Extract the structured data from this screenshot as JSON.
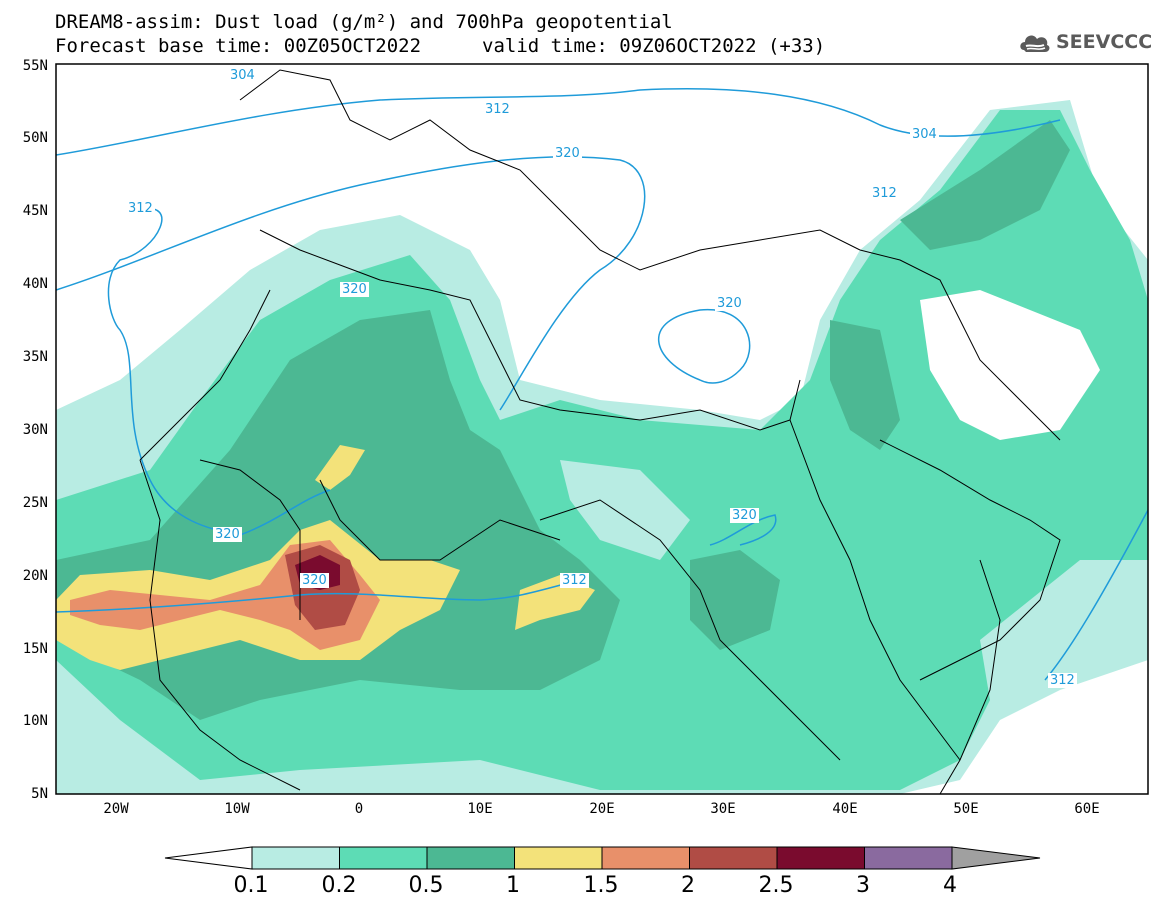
{
  "header": {
    "line1": "DREAM8-assim: Dust load (g/m²) and 700hPa geopotential",
    "line2": "Forecast base time: 00Z05OCT2022",
    "valid": "valid time: 09Z06OCT2022 (+33)"
  },
  "logo": {
    "text": "SEEVCCC",
    "icon": "cloud-logo-icon"
  },
  "axes": {
    "lat_labels": [
      "55N",
      "50N",
      "45N",
      "40N",
      "35N",
      "30N",
      "25N",
      "20N",
      "15N",
      "10N",
      "5N"
    ],
    "lon_labels": [
      "20W",
      "10W",
      "0",
      "10E",
      "20E",
      "30E",
      "40E",
      "50E",
      "60E"
    ]
  },
  "contour_labels": [
    "304",
    "312",
    "320",
    "312",
    "304",
    "312",
    "320",
    "320",
    "320",
    "312",
    "320",
    "320",
    "312"
  ],
  "colorbar": {
    "labels": [
      "0.1",
      "0.2",
      "0.5",
      "1",
      "1.5",
      "2",
      "2.5",
      "3",
      "4"
    ],
    "colors": [
      "#b8ece3",
      "#5ddcb5",
      "#4cb893",
      "#f3e27a",
      "#e8906a",
      "#b04c45",
      "#7a0b2e",
      "#8a6a9f"
    ],
    "under_color": "#ffffff",
    "over_color": "#a0a0a0"
  },
  "colors": {
    "contour": "#1f9bd9",
    "coast": "#000000"
  }
}
